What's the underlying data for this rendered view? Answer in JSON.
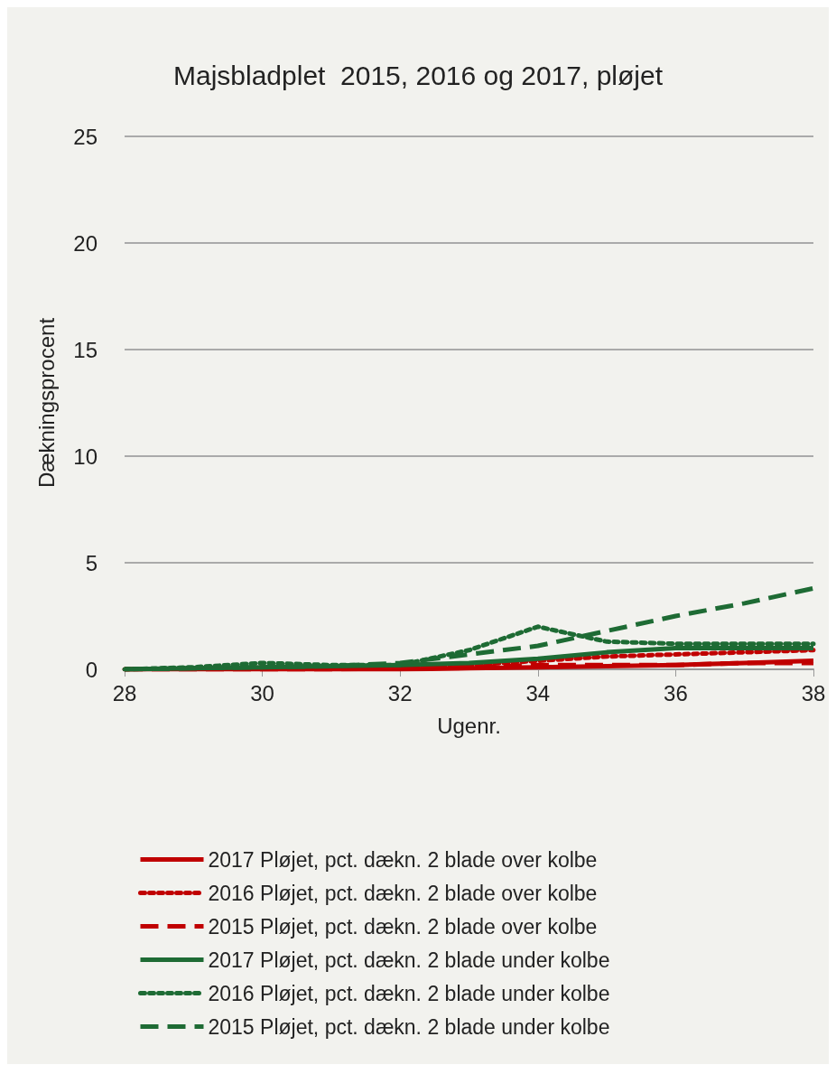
{
  "chart_data": {
    "type": "line",
    "title": "Majsbladplet  2015, 2016 og 2017, pløjet",
    "xlabel": "Ugenr.",
    "ylabel": "Dækningsprocent",
    "x": [
      28,
      29,
      30,
      31,
      32,
      33,
      34,
      35,
      36,
      37,
      38
    ],
    "xlim": [
      28,
      38
    ],
    "xticks": [
      28,
      30,
      32,
      34,
      36,
      38
    ],
    "ylim": [
      0,
      25
    ],
    "yticks": [
      0,
      5,
      10,
      15,
      20,
      25
    ],
    "grid": "y",
    "legend": "bottom",
    "marker": "none",
    "series": [
      {
        "name": "2017 Pløjet, pct. dækn. 2 blade over kolbe",
        "color": "#c00000",
        "line_style": "solid",
        "values": [
          0,
          0,
          0,
          0,
          0,
          0.05,
          0.1,
          0.15,
          0.2,
          0.3,
          0.4
        ]
      },
      {
        "name": "2016 Pløjet, pct. dækn. 2 blade over kolbe",
        "color": "#c00000",
        "line_style": "dotted",
        "values": [
          0,
          0.05,
          0.1,
          0.1,
          0.1,
          0.2,
          0.4,
          0.6,
          0.7,
          0.8,
          0.9
        ]
      },
      {
        "name": "2015 Pløjet, pct. dækn. 2 blade over kolbe",
        "color": "#c00000",
        "line_style": "dashed",
        "values": [
          0,
          0,
          0,
          0,
          0.05,
          0.1,
          0.2,
          0.2,
          0.2,
          0.3,
          0.3
        ]
      },
      {
        "name": "2017 Pløjet, pct. dækn. 2 blade under kolbe",
        "color": "#1e6b34",
        "line_style": "solid",
        "values": [
          0,
          0.05,
          0.1,
          0.15,
          0.2,
          0.3,
          0.5,
          0.8,
          1.0,
          1.0,
          1.0
        ]
      },
      {
        "name": "2016 Pløjet, pct. dækn. 2 blade under kolbe",
        "color": "#1e6b34",
        "line_style": "dotted",
        "values": [
          0,
          0.1,
          0.3,
          0.2,
          0.2,
          0.9,
          2.0,
          1.3,
          1.2,
          1.2,
          1.2
        ]
      },
      {
        "name": "2015 Pløjet, pct. dækn. 2 blade under kolbe",
        "color": "#1e6b34",
        "line_style": "dashed",
        "values": [
          0,
          0.05,
          0.1,
          0.15,
          0.3,
          0.7,
          1.1,
          1.8,
          2.5,
          3.1,
          3.8
        ]
      }
    ]
  }
}
